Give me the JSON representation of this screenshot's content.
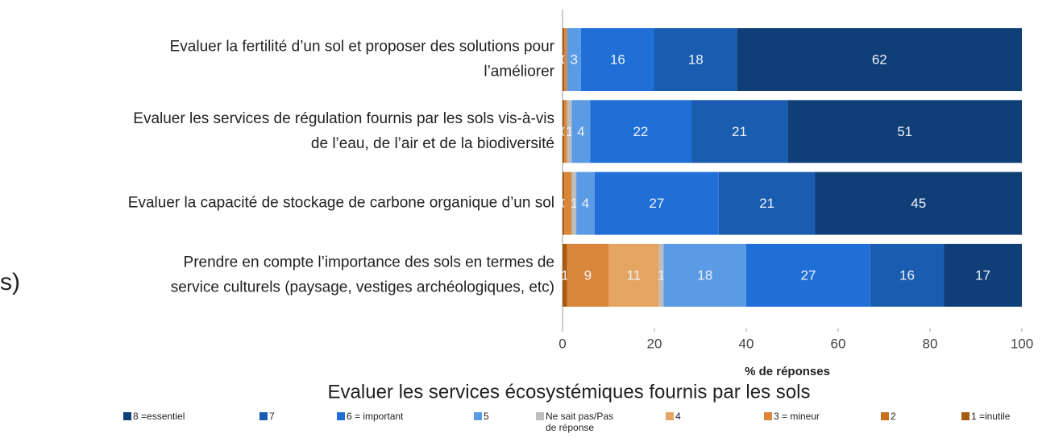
{
  "chart_data": {
    "type": "stacked_barh",
    "title": "Evaluer les services écosystémiques fournis par les sols",
    "xlabel": "% de réponses",
    "annotations": [
      "s)"
    ],
    "categories": [
      [
        "Evaluer la fertilité d’un sol et proposer des solutions pour",
        "l’améliorer"
      ],
      [
        "Evaluer les services de régulation fournis par les sols vis-à-vis",
        "de l’eau, de l’air et de la biodiversité"
      ],
      [
        "Evaluer la capacité de stockage de carbone organique d’un sol"
      ],
      [
        "Prendre en compte l’importance des sols en termes de",
        "service culturels (paysage, vestiges archéologiques, etc)"
      ]
    ],
    "xlim": [
      0,
      100
    ],
    "xticks": [
      0,
      20,
      40,
      60,
      80,
      100
    ],
    "series": [
      {
        "name": [
          "1 =inutile"
        ],
        "color": "#a85a12",
        "values": [
          0.4,
          0.4,
          0.4,
          1
        ],
        "value_labels": [
          "0",
          "0",
          "0",
          "1"
        ]
      },
      {
        "name": [
          "2"
        ],
        "color": "#c96f20",
        "values": [
          0,
          0,
          0,
          0
        ],
        "value_labels": [
          null,
          null,
          null,
          null
        ]
      },
      {
        "name": [
          "3 = mineur"
        ],
        "color": "#d9853a",
        "values": [
          0.6,
          0.6,
          1.6,
          9
        ],
        "value_labels": [
          null,
          null,
          null,
          "9"
        ]
      },
      {
        "name": [
          "4"
        ],
        "color": "#e5a562",
        "values": [
          0,
          0,
          0,
          11
        ],
        "value_labels": [
          null,
          null,
          null,
          "11"
        ]
      },
      {
        "name": [
          "Ne sait pas/Pas",
          "de réponse"
        ],
        "color": "#bdbdbd",
        "values": [
          0,
          1,
          1,
          1
        ],
        "value_labels": [
          null,
          "1",
          "1",
          "1"
        ]
      },
      {
        "name": [
          "5"
        ],
        "color": "#5b9be6",
        "values": [
          3,
          4,
          4,
          18
        ],
        "value_labels": [
          "3",
          "4",
          "4",
          "18"
        ]
      },
      {
        "name": [
          "6 = important"
        ],
        "color": "#1f6fd6",
        "values": [
          16,
          22,
          27,
          27
        ],
        "value_labels": [
          "16",
          "22",
          "27",
          "27"
        ]
      },
      {
        "name": [
          "7"
        ],
        "color": "#195cb0",
        "values": [
          18,
          21,
          21,
          16
        ],
        "value_labels": [
          "18",
          "21",
          "21",
          "16"
        ]
      },
      {
        "name": [
          "8 =essentiel"
        ],
        "color": "#103f78",
        "values": [
          62,
          51,
          45,
          17
        ],
        "value_labels": [
          "62",
          "51",
          "45",
          "17"
        ]
      }
    ]
  }
}
